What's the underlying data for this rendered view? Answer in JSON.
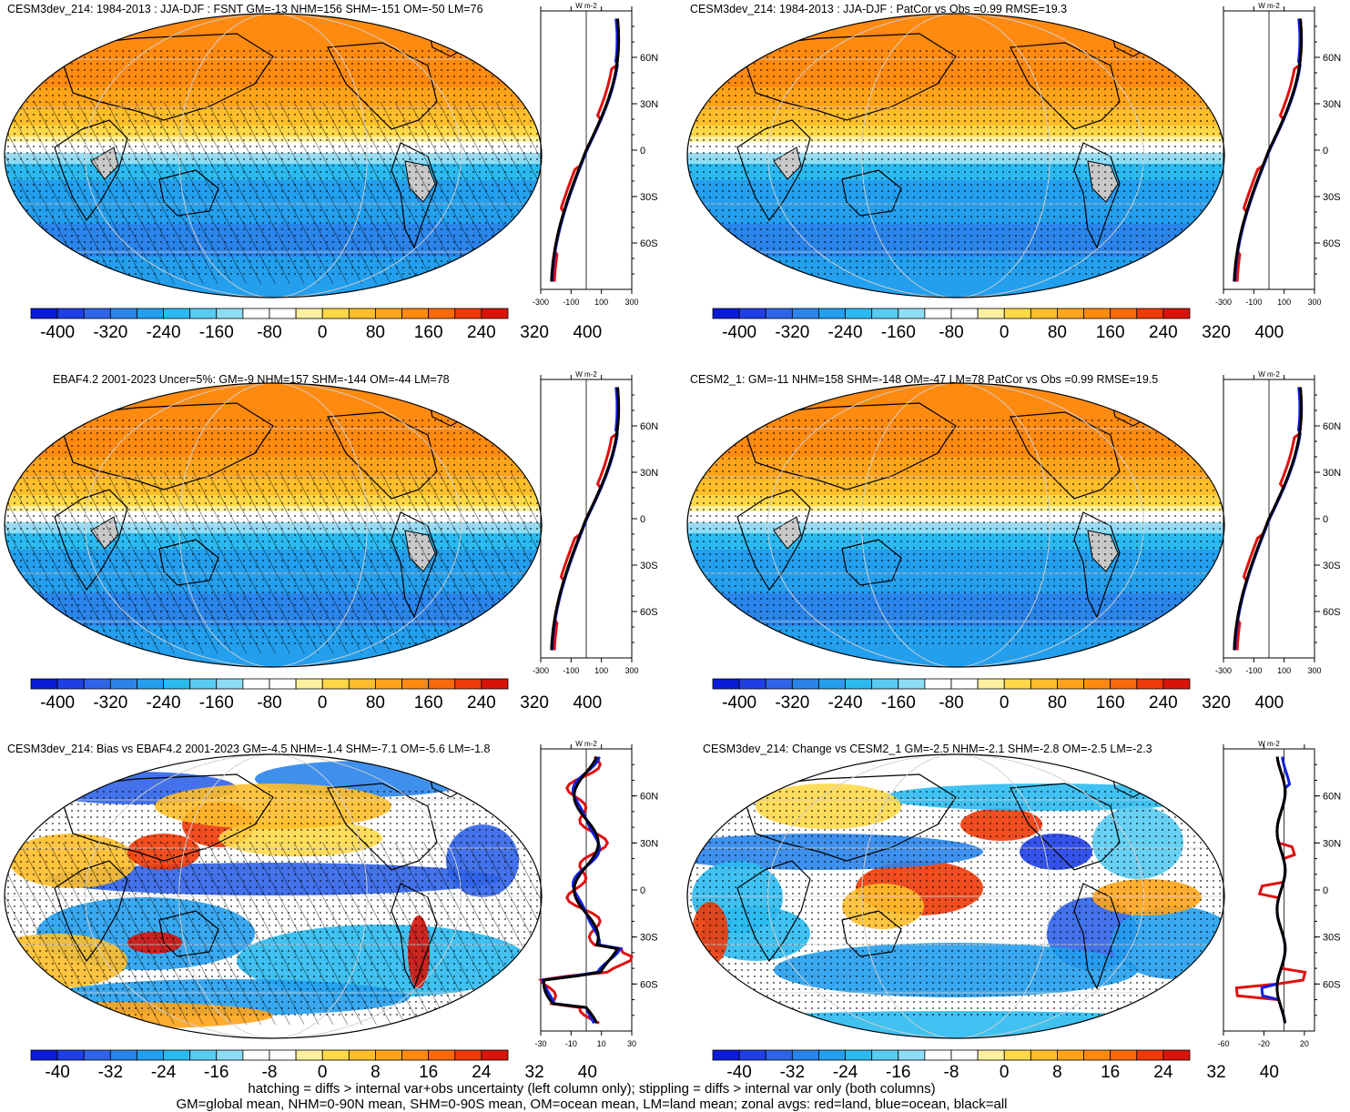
{
  "panels": [
    {
      "id": "p1",
      "title": "CESM3dev_214: 1984-2013 : JJA-DJF : FSNT GM=-13 NHM=156 SHM=-151 OM=-50 LM=76",
      "palette": "absolute",
      "hatch": true,
      "stipple": true,
      "kind": "abs",
      "cbar_labels": [
        "-400",
        "-320",
        "-240",
        "-160",
        "-80",
        "0",
        "80",
        "160",
        "240",
        "320",
        "400"
      ],
      "zonal_ticks": [
        "-300",
        "-100",
        "100",
        "300"
      ],
      "zonal_range": [
        -300,
        300
      ],
      "zonal_unit": "W m-2",
      "lat_labels": [
        "60N",
        "30N",
        "0",
        "30S",
        "60S"
      ]
    },
    {
      "id": "p2",
      "title": "CESM3dev_214: 1984-2013 : JJA-DJF : PatCor vs Obs =0.99 RMSE=19.3",
      "palette": "absolute",
      "hatch": false,
      "stipple": true,
      "kind": "abs",
      "cbar_labels": [
        "-400",
        "-320",
        "-240",
        "-160",
        "-80",
        "0",
        "80",
        "160",
        "240",
        "320",
        "400"
      ],
      "zonal_ticks": [
        "-300",
        "-100",
        "100",
        "300"
      ],
      "zonal_range": [
        -300,
        300
      ],
      "zonal_unit": "W m-2",
      "lat_labels": [
        "60N",
        "30N",
        "0",
        "30S",
        "60S"
      ]
    },
    {
      "id": "p3",
      "title": "EBAF4.2 2001-2023 Uncer=5%: GM=-9 NHM=157 SHM=-144 OM=-44 LM=78",
      "palette": "absolute",
      "hatch": true,
      "stipple": true,
      "kind": "abs",
      "cbar_labels": [
        "-400",
        "-320",
        "-240",
        "-160",
        "-80",
        "0",
        "80",
        "160",
        "240",
        "320",
        "400"
      ],
      "zonal_ticks": [
        "-300",
        "-100",
        "100",
        "300"
      ],
      "zonal_range": [
        -300,
        300
      ],
      "zonal_unit": "W m-2",
      "lat_labels": [
        "60N",
        "30N",
        "0",
        "30S",
        "60S"
      ]
    },
    {
      "id": "p4",
      "title": "CESM2_1: GM=-11 NHM=158 SHM=-148 OM=-47 LM=78 PatCor vs Obs =0.99 RMSE=19.5",
      "palette": "absolute",
      "hatch": false,
      "stipple": true,
      "kind": "abs",
      "cbar_labels": [
        "-400",
        "-320",
        "-240",
        "-160",
        "-80",
        "0",
        "80",
        "160",
        "240",
        "320",
        "400"
      ],
      "zonal_ticks": [
        "-300",
        "-100",
        "100",
        "300"
      ],
      "zonal_range": [
        -300,
        300
      ],
      "zonal_unit": "W m-2",
      "lat_labels": [
        "60N",
        "30N",
        "0",
        "30S",
        "60S"
      ]
    },
    {
      "id": "p5",
      "title": "CESM3dev_214: Bias vs EBAF4.2 2001-2023 GM=-4.5 NHM=-1.4 SHM=-7.1 OM=-5.6 LM=-1.8",
      "palette": "diff",
      "hatch": true,
      "stipple": true,
      "kind": "bias",
      "cbar_labels": [
        "-40",
        "-32",
        "-24",
        "-16",
        "-8",
        "0",
        "8",
        "16",
        "24",
        "32",
        "40"
      ],
      "zonal_ticks": [
        "-30",
        "-10",
        "10",
        "30"
      ],
      "zonal_range": [
        -30,
        30
      ],
      "zonal_unit": "W m-2",
      "lat_labels": [
        "60N",
        "30N",
        "0",
        "30S",
        "60S"
      ]
    },
    {
      "id": "p6",
      "title": "CESM3dev_214: Change vs CESM2_1 GM=-2.5 NHM=-2.1 SHM=-2.8 OM=-2.5 LM=-2.3",
      "palette": "diff",
      "hatch": false,
      "stipple": true,
      "kind": "change",
      "cbar_labels": [
        "-40",
        "-32",
        "-24",
        "-16",
        "-8",
        "0",
        "8",
        "16",
        "24",
        "32",
        "40"
      ],
      "zonal_ticks": [
        "-60",
        "-20",
        "20"
      ],
      "zonal_range": [
        -60,
        30
      ],
      "zonal_unit": "W m-2",
      "lat_labels": [
        "60N",
        "30N",
        "0",
        "30S",
        "60S"
      ]
    }
  ],
  "colors": {
    "palette": [
      "#0a1bd8",
      "#1f3fe6",
      "#2f63e8",
      "#2a84ea",
      "#239fee",
      "#2bbaf0",
      "#58cbf2",
      "#8fdcf5",
      "#ffffff",
      "#ffffff",
      "#fff0a0",
      "#ffd84a",
      "#ffbe2a",
      "#ffa41a",
      "#ff8a10",
      "#fa6a0c",
      "#ee3a08",
      "#d8140a"
    ],
    "land_gray": "#c8c8c8",
    "zonal_land": "#e01010",
    "zonal_ocean": "#1020e0",
    "zonal_all": "#000000"
  },
  "footer": {
    "line1": "hatching = diffs > internal var+obs uncertainty (left column only); stippling = diffs > internal var only (both columns)",
    "line2": "GM=global mean, NHM=0-90N mean, SHM=0-90S mean, OM=ocean mean, LM=land mean; zonal avgs: red=land, blue=ocean, black=all"
  }
}
